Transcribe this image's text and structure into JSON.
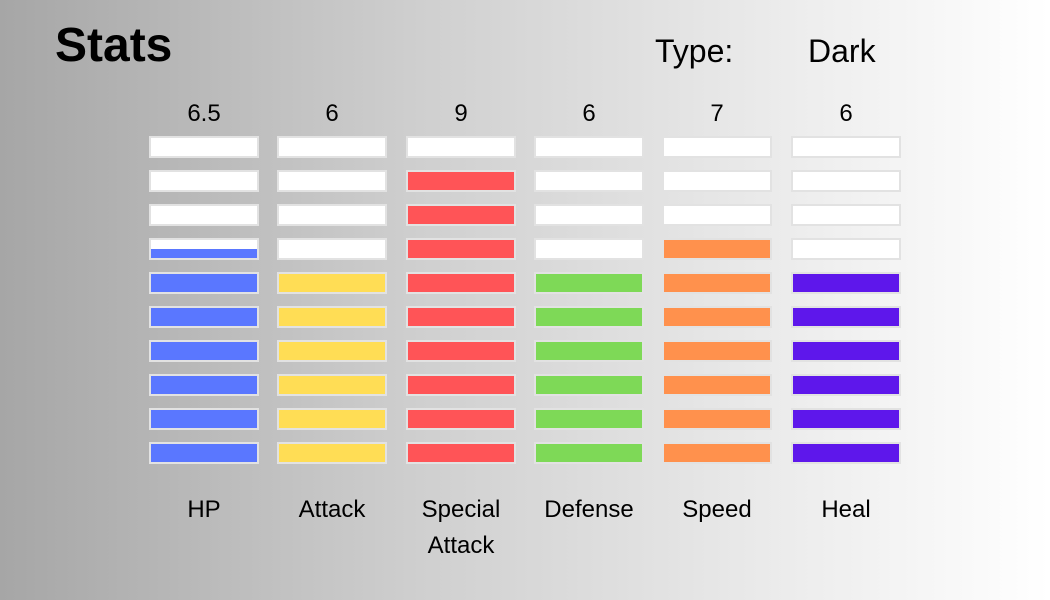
{
  "header": {
    "title": "Stats",
    "type_label": "Type:",
    "type_value": "Dark"
  },
  "max_value": 10,
  "stats": [
    {
      "name": "HP",
      "value_label": "6.5",
      "value": 6.5,
      "color": "#5a77ff"
    },
    {
      "name": "Attack",
      "value_label": "6",
      "value": 6,
      "color": "#ffdd55"
    },
    {
      "name": "Special Attack",
      "value_label": "9",
      "value": 9,
      "color": "#ff5457"
    },
    {
      "name": "Defense",
      "value_label": "6",
      "value": 6,
      "color": "#7ed957"
    },
    {
      "name": "Speed",
      "value_label": "7",
      "value": 7,
      "color": "#ff914d"
    },
    {
      "name": "Heal",
      "value_label": "6",
      "value": 6,
      "color": "#5e17eb"
    }
  ]
}
